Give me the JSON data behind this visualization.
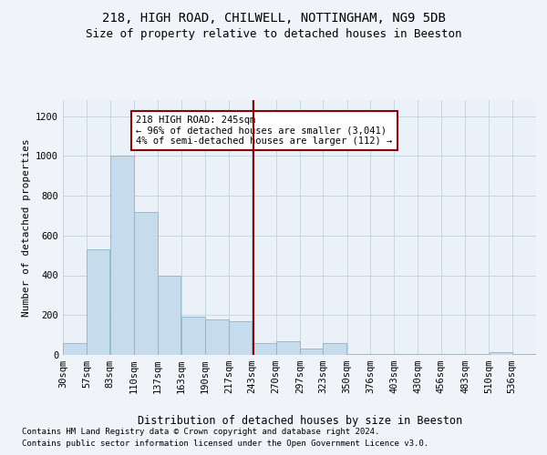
{
  "title1": "218, HIGH ROAD, CHILWELL, NOTTINGHAM, NG9 5DB",
  "title2": "Size of property relative to detached houses in Beeston",
  "xlabel": "Distribution of detached houses by size in Beeston",
  "ylabel": "Number of detached properties",
  "footer1": "Contains HM Land Registry data © Crown copyright and database right 2024.",
  "footer2": "Contains public sector information licensed under the Open Government Licence v3.0.",
  "annotation_line1": "218 HIGH ROAD: 245sqm",
  "annotation_line2": "← 96% of detached houses are smaller (3,041)",
  "annotation_line3": "4% of semi-detached houses are larger (112) →",
  "property_line_x": 245,
  "bar_edges": [
    30,
    57,
    83,
    110,
    137,
    163,
    190,
    217,
    243,
    270,
    297,
    323,
    350,
    376,
    403,
    430,
    456,
    483,
    510,
    536,
    563
  ],
  "bar_heights": [
    60,
    530,
    1000,
    720,
    400,
    190,
    180,
    170,
    60,
    70,
    30,
    60,
    5,
    5,
    5,
    5,
    5,
    5,
    15,
    5,
    0
  ],
  "bar_color": "#c6dcec",
  "bar_edge_color": "#8ab4cc",
  "line_color": "#8b0000",
  "annotation_box_edge_color": "#8b0000",
  "background_color": "#f0f4f8",
  "plot_bg_color": "#eaf1f8",
  "grid_color": "#b8ccd8",
  "ylim": [
    0,
    1280
  ],
  "yticks": [
    0,
    200,
    400,
    600,
    800,
    1000,
    1200
  ],
  "title1_fontsize": 10,
  "title2_fontsize": 9,
  "xlabel_fontsize": 8.5,
  "ylabel_fontsize": 8,
  "tick_fontsize": 7.5,
  "annotation_fontsize": 7.5,
  "footer_fontsize": 6.5
}
